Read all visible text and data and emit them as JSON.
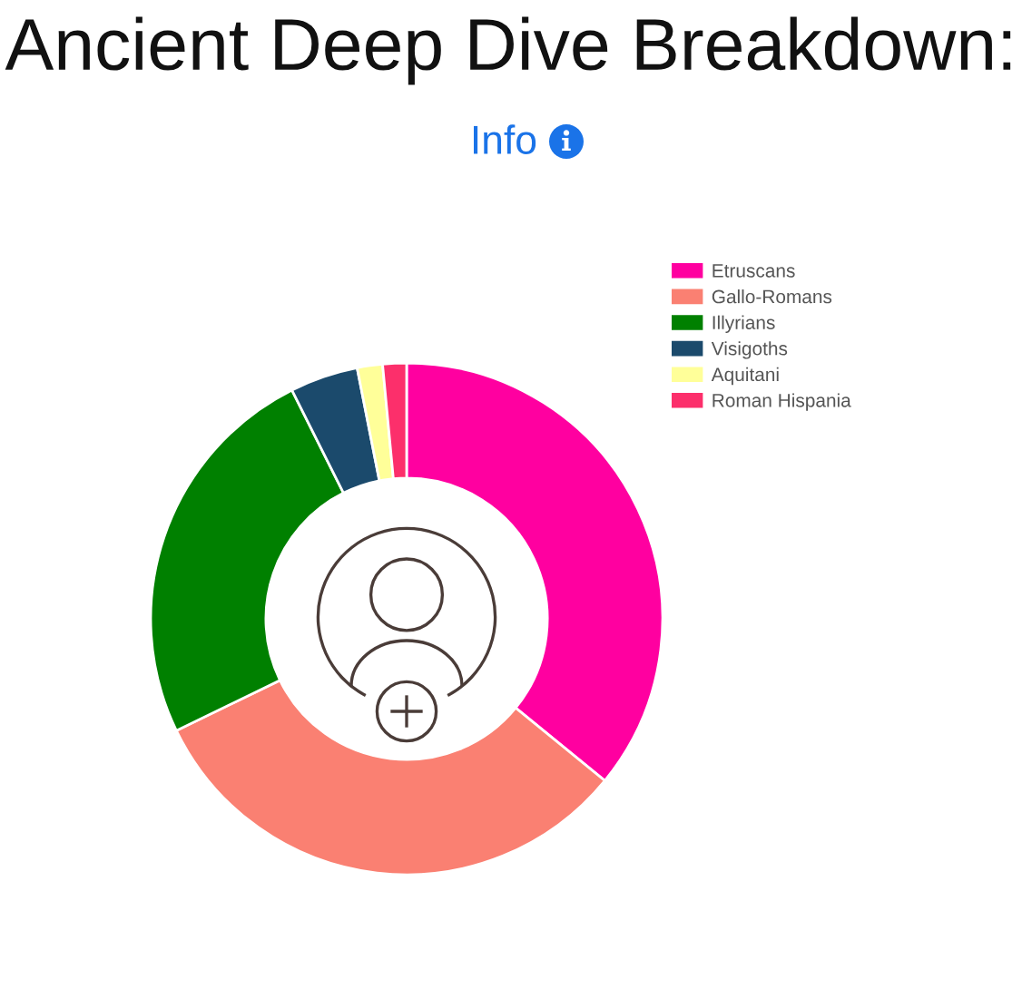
{
  "chart_data": {
    "type": "donut",
    "title": "Ancient Deep Dive Breakdown:",
    "subtitle": "Info",
    "categories": [
      "Etruscans",
      "Gallo-Romans",
      "Illyrians",
      "Visigoths",
      "Aquitani",
      "Roman Hispania"
    ],
    "values": [
      35.9,
      31.9,
      24.8,
      4.3,
      1.6,
      1.5
    ],
    "colors": [
      "#ff00a0",
      "#fa8072",
      "#008000",
      "#1b4a6c",
      "#ffff99",
      "#fc2f6b"
    ],
    "legend": "top right"
  }
}
